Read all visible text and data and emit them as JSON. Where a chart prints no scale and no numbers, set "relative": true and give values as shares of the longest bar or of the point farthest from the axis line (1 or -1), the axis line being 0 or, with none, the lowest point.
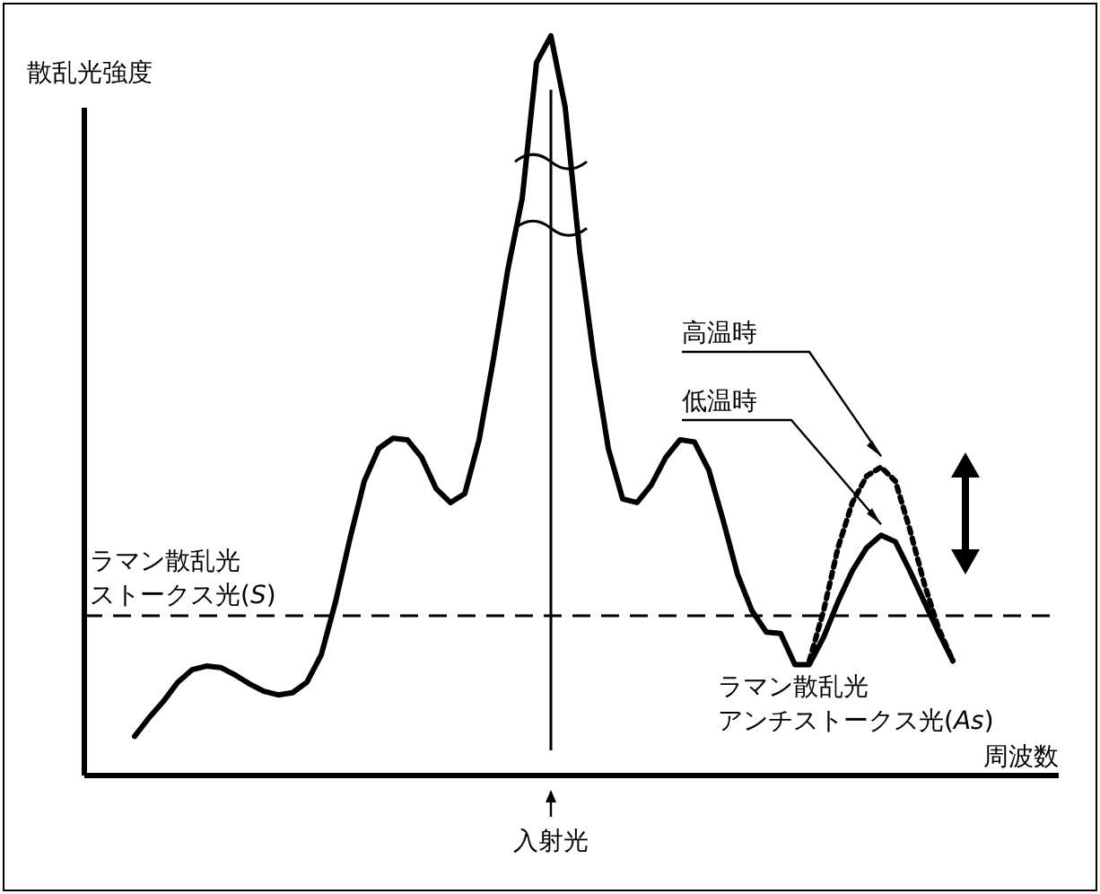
{
  "chart_data": {
    "type": "line",
    "relative": true,
    "xlabel": "周波数",
    "ylabel": "散乱光強度",
    "legend": false,
    "grid": false,
    "marker": "none",
    "categories": [
      null,
      null,
      null,
      null,
      null,
      null,
      null,
      null,
      null,
      null,
      null,
      null,
      null,
      null,
      null,
      null,
      null,
      null,
      null,
      null,
      null,
      null,
      null,
      null,
      null,
      null,
      null,
      null,
      null,
      null,
      null,
      null,
      null,
      null,
      null,
      null,
      null,
      null,
      null,
      null,
      null,
      null,
      null,
      null,
      null,
      null,
      null,
      null,
      null,
      null,
      null,
      null,
      null,
      null,
      null,
      null,
      null,
      null
    ],
    "series": [
      {
        "name": "低温時",
        "color": "#000000",
        "line_style": "solid",
        "values": [
          0.053,
          0.078,
          0.1,
          0.126,
          0.143,
          0.148,
          0.146,
          0.136,
          0.124,
          0.114,
          0.109,
          0.112,
          0.126,
          0.163,
          0.235,
          0.32,
          0.398,
          0.442,
          0.456,
          0.454,
          0.43,
          0.388,
          0.369,
          0.381,
          0.454,
          0.563,
          0.684,
          0.78,
          0.964,
          1.0,
          0.903,
          0.709,
          0.563,
          0.442,
          0.374,
          0.369,
          0.393,
          0.43,
          0.454,
          0.451,
          0.413,
          0.345,
          0.272,
          0.223,
          0.194,
          0.192,
          0.15,
          0.15,
          0.187,
          0.235,
          0.277,
          0.308,
          0.325,
          0.316,
          0.277,
          0.235,
          0.194,
          0.155
        ]
      },
      {
        "name": "高温時",
        "color": "#000000",
        "line_style": "dotted",
        "values": [
          null,
          null,
          null,
          null,
          null,
          null,
          null,
          null,
          null,
          null,
          null,
          null,
          null,
          null,
          null,
          null,
          null,
          null,
          null,
          null,
          null,
          null,
          null,
          null,
          null,
          null,
          null,
          null,
          null,
          null,
          null,
          null,
          null,
          null,
          null,
          null,
          null,
          null,
          null,
          null,
          null,
          null,
          null,
          null,
          null,
          null,
          null,
          0.155,
          0.223,
          0.308,
          0.369,
          0.405,
          0.417,
          0.398,
          0.333,
          0.26,
          0.199,
          0.155
        ]
      }
    ],
    "ref_lines": [
      {
        "axis": "y",
        "value": 0.216,
        "line_style": "dashed"
      }
    ],
    "annotations": [
      "ラマン散乱光",
      "ストークス光(S)",
      "ラマン散乱光",
      "アンチストークス光(As)",
      "入射光"
    ]
  }
}
